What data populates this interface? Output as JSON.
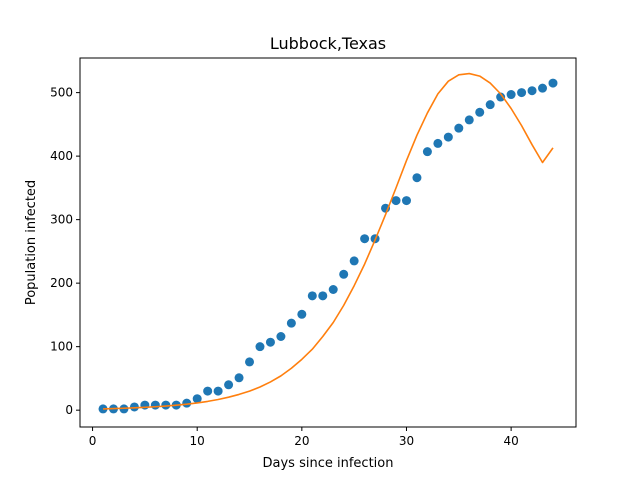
{
  "chart_data": {
    "type": "scatter",
    "title": "Lubbock,Texas",
    "xlabel": "Days since infection",
    "ylabel": "Population infected",
    "xlim": [
      -1.2,
      46.2
    ],
    "ylim": [
      -26.5,
      554.5
    ],
    "xticks": [
      0,
      10,
      20,
      30,
      40
    ],
    "yticks": [
      0,
      100,
      200,
      300,
      400,
      500
    ],
    "grid": false,
    "legend": "none",
    "series": [
      {
        "kind": "scatter",
        "color": "#1f77b4",
        "x": [
          1,
          2,
          3,
          4,
          5,
          6,
          7,
          8,
          9,
          10,
          11,
          12,
          13,
          14,
          15,
          16,
          17,
          18,
          19,
          20,
          21,
          22,
          23,
          24,
          25,
          26,
          27,
          28,
          29,
          30,
          31,
          32,
          33,
          34,
          35,
          36,
          37,
          38,
          39,
          40,
          41,
          42,
          43,
          44
        ],
        "y": [
          2,
          2,
          2,
          5,
          8,
          8,
          8,
          8,
          11,
          18,
          30,
          30,
          40,
          51,
          76,
          100,
          107,
          116,
          137,
          151,
          180,
          180,
          190,
          214,
          235,
          270,
          270,
          318,
          330,
          330,
          366,
          407,
          420,
          430,
          444,
          457,
          469,
          481,
          493,
          497,
          500,
          503,
          507,
          515
        ]
      },
      {
        "kind": "line",
        "color": "#ff7f0e",
        "x": [
          1,
          2,
          3,
          4,
          5,
          6,
          7,
          8,
          9,
          10,
          11,
          12,
          13,
          14,
          15,
          16,
          17,
          18,
          19,
          20,
          21,
          22,
          23,
          24,
          25,
          26,
          27,
          28,
          29,
          30,
          31,
          32,
          33,
          34,
          35,
          36,
          37,
          38,
          39,
          40,
          41,
          42,
          43,
          44
        ],
        "y": [
          2,
          2.5,
          3,
          3.7,
          4.5,
          5.4,
          6.5,
          7.8,
          9.4,
          11.4,
          13.8,
          16.8,
          20.4,
          24.8,
          30,
          36.5,
          44.5,
          54,
          66,
          80,
          96,
          116,
          138,
          165,
          196,
          230,
          268,
          308,
          350,
          393,
          433,
          468,
          498,
          518,
          528,
          530,
          526,
          515,
          498,
          475,
          448,
          418,
          390,
          413
        ]
      }
    ]
  }
}
